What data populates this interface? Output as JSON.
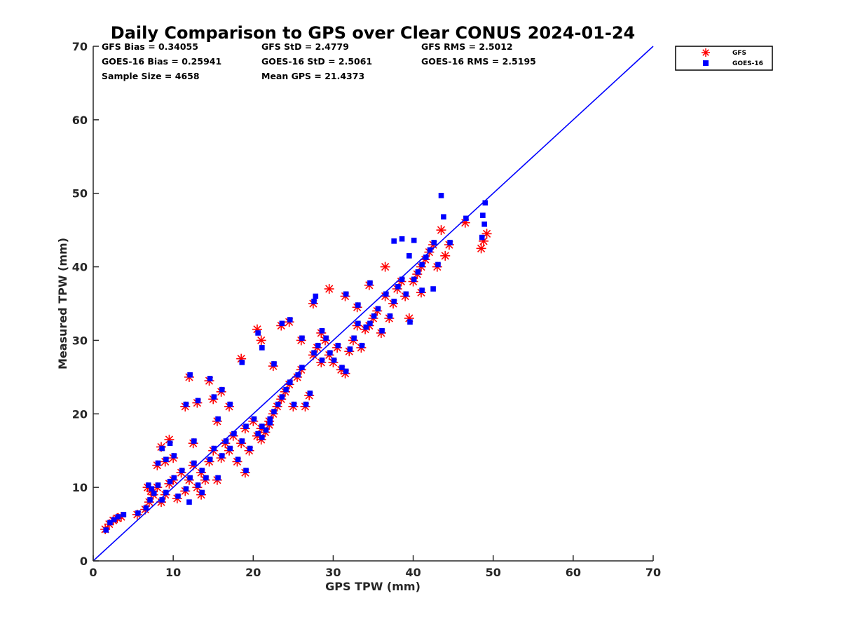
{
  "chart_data": {
    "type": "scatter",
    "title": "Daily Comparison to GPS over Clear CONUS 2024-01-24",
    "xlabel": "GPS TPW (mm)",
    "ylabel": "Measured TPW (mm)",
    "xlim": [
      0,
      70
    ],
    "ylim": [
      0,
      70
    ],
    "xticks": [
      "0",
      "10",
      "20",
      "30",
      "40",
      "50",
      "60",
      "70"
    ],
    "yticks": [
      "0",
      "10",
      "20",
      "30",
      "40",
      "50",
      "60",
      "70"
    ],
    "reference_line": {
      "name": "1:1",
      "x": [
        0,
        70
      ],
      "y": [
        0,
        70
      ],
      "color": "#0000ff"
    },
    "stats": [
      "GFS Bias = 0.34055",
      "GFS StD = 2.4779",
      "GFS RMS = 2.5012",
      "GOES-16 Bias = 0.25941",
      "GOES-16 StD = 2.5061",
      "GOES-16 RMS = 2.5195",
      "Sample Size = 4658",
      "Mean GPS = 21.4373"
    ],
    "legend": {
      "position": "top-right",
      "entries": [
        "GFS",
        "GOES-16"
      ]
    },
    "series": [
      {
        "name": "GFS",
        "marker": "asterisk",
        "color": "#ff0000",
        "points": [
          [
            1.5,
            4.3
          ],
          [
            2.0,
            5.0
          ],
          [
            2.5,
            5.5
          ],
          [
            3.0,
            5.8
          ],
          [
            3.5,
            6.0
          ],
          [
            5.5,
            6.3
          ],
          [
            6.5,
            7.0
          ],
          [
            7.0,
            8.0
          ],
          [
            7.5,
            9.0
          ],
          [
            6.8,
            10.0
          ],
          [
            7.2,
            9.5
          ],
          [
            8.0,
            10.0
          ],
          [
            8.5,
            8.0
          ],
          [
            9.0,
            9.0
          ],
          [
            9.5,
            10.5
          ],
          [
            10.0,
            11.0
          ],
          [
            10.5,
            8.5
          ],
          [
            11.0,
            12.0
          ],
          [
            11.5,
            9.5
          ],
          [
            12.0,
            11.0
          ],
          [
            12.5,
            13.0
          ],
          [
            13.0,
            10.0
          ],
          [
            13.5,
            12.0
          ],
          [
            14.0,
            11.0
          ],
          [
            14.5,
            13.5
          ],
          [
            15.0,
            15.0
          ],
          [
            15.5,
            11.0
          ],
          [
            16.0,
            14.0
          ],
          [
            16.5,
            16.0
          ],
          [
            17.0,
            15.0
          ],
          [
            17.5,
            17.0
          ],
          [
            18.0,
            13.5
          ],
          [
            18.5,
            16.0
          ],
          [
            19.0,
            18.0
          ],
          [
            19.5,
            15.0
          ],
          [
            20.0,
            19.0
          ],
          [
            20.5,
            17.0
          ],
          [
            21.0,
            18.0
          ],
          [
            21.5,
            17.5
          ],
          [
            22.0,
            19.0
          ],
          [
            22.5,
            20.0
          ],
          [
            23.0,
            21.0
          ],
          [
            23.5,
            22.0
          ],
          [
            24.0,
            23.0
          ],
          [
            24.5,
            24.0
          ],
          [
            25.0,
            21.0
          ],
          [
            25.5,
            25.0
          ],
          [
            26.0,
            26.0
          ],
          [
            26.5,
            21.0
          ],
          [
            27.0,
            22.5
          ],
          [
            27.5,
            28.0
          ],
          [
            28.0,
            29.0
          ],
          [
            28.5,
            27.0
          ],
          [
            29.0,
            30.0
          ],
          [
            29.5,
            28.0
          ],
          [
            30.0,
            27.0
          ],
          [
            30.5,
            29.0
          ],
          [
            31.0,
            26.0
          ],
          [
            31.5,
            25.5
          ],
          [
            32.0,
            28.5
          ],
          [
            32.5,
            30.0
          ],
          [
            33.0,
            32.0
          ],
          [
            33.5,
            29.0
          ],
          [
            34.0,
            31.5
          ],
          [
            34.5,
            32.0
          ],
          [
            35.0,
            33.0
          ],
          [
            35.5,
            34.0
          ],
          [
            36.0,
            31.0
          ],
          [
            36.5,
            36.0
          ],
          [
            37.0,
            33.0
          ],
          [
            37.5,
            35.0
          ],
          [
            38.0,
            37.0
          ],
          [
            38.5,
            38.0
          ],
          [
            39.0,
            36.0
          ],
          [
            39.5,
            33.0
          ],
          [
            40.0,
            38.0
          ],
          [
            40.5,
            39.0
          ],
          [
            41.0,
            40.0
          ],
          [
            41.5,
            41.0
          ],
          [
            42.0,
            42.0
          ],
          [
            42.5,
            43.0
          ],
          [
            43.0,
            40.0
          ],
          [
            43.5,
            45.0
          ],
          [
            44.0,
            41.5
          ],
          [
            44.5,
            43.0
          ],
          [
            46.5,
            46.0
          ],
          [
            48.5,
            42.5
          ],
          [
            48.8,
            43.5
          ],
          [
            49.2,
            44.5
          ],
          [
            12.0,
            25.0
          ],
          [
            13.0,
            21.5
          ],
          [
            14.5,
            24.5
          ],
          [
            15.0,
            22.0
          ],
          [
            11.5,
            21.0
          ],
          [
            16.0,
            23.0
          ],
          [
            20.5,
            31.5
          ],
          [
            21.0,
            30.0
          ],
          [
            23.5,
            32.0
          ],
          [
            24.5,
            32.5
          ],
          [
            27.5,
            35.0
          ],
          [
            29.5,
            37.0
          ],
          [
            31.5,
            36.0
          ],
          [
            28.5,
            31.0
          ],
          [
            26.0,
            30.0
          ],
          [
            8.5,
            15.5
          ],
          [
            9.5,
            16.5
          ],
          [
            9.0,
            13.5
          ],
          [
            10.0,
            14.0
          ],
          [
            19.0,
            12.0
          ],
          [
            21.0,
            16.5
          ],
          [
            22.0,
            18.5
          ],
          [
            8.0,
            13.0
          ],
          [
            12.5,
            16.0
          ],
          [
            15.5,
            19.0
          ],
          [
            17.0,
            21.0
          ],
          [
            13.5,
            9.0
          ],
          [
            18.5,
            27.5
          ],
          [
            34.5,
            37.5
          ],
          [
            36.5,
            40.0
          ],
          [
            41.0,
            36.5
          ],
          [
            33.0,
            34.5
          ],
          [
            22.5,
            26.5
          ]
        ]
      },
      {
        "name": "GOES-16",
        "marker": "square",
        "color": "#0000ff",
        "points": [
          [
            1.6,
            4.2
          ],
          [
            2.1,
            5.2
          ],
          [
            2.6,
            5.6
          ],
          [
            3.1,
            6.0
          ],
          [
            3.8,
            6.3
          ],
          [
            5.6,
            6.5
          ],
          [
            6.6,
            7.2
          ],
          [
            7.1,
            8.3
          ],
          [
            7.6,
            9.2
          ],
          [
            6.9,
            10.3
          ],
          [
            7.3,
            9.8
          ],
          [
            8.1,
            10.3
          ],
          [
            8.6,
            8.3
          ],
          [
            9.1,
            9.3
          ],
          [
            9.6,
            10.8
          ],
          [
            10.1,
            11.3
          ],
          [
            10.6,
            8.8
          ],
          [
            11.1,
            12.3
          ],
          [
            11.6,
            9.8
          ],
          [
            12.1,
            11.3
          ],
          [
            12.6,
            13.3
          ],
          [
            13.1,
            10.3
          ],
          [
            13.6,
            12.3
          ],
          [
            14.1,
            11.3
          ],
          [
            14.6,
            13.8
          ],
          [
            15.1,
            15.3
          ],
          [
            15.6,
            11.3
          ],
          [
            16.1,
            14.3
          ],
          [
            16.6,
            16.3
          ],
          [
            17.1,
            15.3
          ],
          [
            17.6,
            17.3
          ],
          [
            18.1,
            13.8
          ],
          [
            18.6,
            16.3
          ],
          [
            19.1,
            18.3
          ],
          [
            19.6,
            15.3
          ],
          [
            20.1,
            19.3
          ],
          [
            20.6,
            17.3
          ],
          [
            21.1,
            18.3
          ],
          [
            21.6,
            17.8
          ],
          [
            22.1,
            19.3
          ],
          [
            22.6,
            20.3
          ],
          [
            23.1,
            21.3
          ],
          [
            23.6,
            22.3
          ],
          [
            24.1,
            23.3
          ],
          [
            24.6,
            24.3
          ],
          [
            25.1,
            21.3
          ],
          [
            25.6,
            25.3
          ],
          [
            26.1,
            26.3
          ],
          [
            26.6,
            21.3
          ],
          [
            27.1,
            22.8
          ],
          [
            27.6,
            28.3
          ],
          [
            28.1,
            29.3
          ],
          [
            28.6,
            27.3
          ],
          [
            29.1,
            30.3
          ],
          [
            29.6,
            28.3
          ],
          [
            30.1,
            27.3
          ],
          [
            30.6,
            29.3
          ],
          [
            31.1,
            26.3
          ],
          [
            31.6,
            25.8
          ],
          [
            32.1,
            28.8
          ],
          [
            32.6,
            30.3
          ],
          [
            33.1,
            32.3
          ],
          [
            33.6,
            29.3
          ],
          [
            34.1,
            31.8
          ],
          [
            34.6,
            32.3
          ],
          [
            35.1,
            33.3
          ],
          [
            35.6,
            34.3
          ],
          [
            36.1,
            31.3
          ],
          [
            36.6,
            36.3
          ],
          [
            37.1,
            33.3
          ],
          [
            37.6,
            35.3
          ],
          [
            38.1,
            37.3
          ],
          [
            38.6,
            38.3
          ],
          [
            39.1,
            36.3
          ],
          [
            39.6,
            32.5
          ],
          [
            40.1,
            38.3
          ],
          [
            40.6,
            39.3
          ],
          [
            41.1,
            40.3
          ],
          [
            41.6,
            41.3
          ],
          [
            42.1,
            42.3
          ],
          [
            42.6,
            43.3
          ],
          [
            43.1,
            40.3
          ],
          [
            43.5,
            49.7
          ],
          [
            43.8,
            46.8
          ],
          [
            44.6,
            43.3
          ],
          [
            46.6,
            46.6
          ],
          [
            48.7,
            47.0
          ],
          [
            49.0,
            48.7
          ],
          [
            48.9,
            45.8
          ],
          [
            48.6,
            44.0
          ],
          [
            12.1,
            25.3
          ],
          [
            13.1,
            21.8
          ],
          [
            14.6,
            24.8
          ],
          [
            15.1,
            22.3
          ],
          [
            11.6,
            21.3
          ],
          [
            16.1,
            23.3
          ],
          [
            20.6,
            31.0
          ],
          [
            21.1,
            29.0
          ],
          [
            23.6,
            32.3
          ],
          [
            24.6,
            32.8
          ],
          [
            27.6,
            35.3
          ],
          [
            27.8,
            36.0
          ],
          [
            31.6,
            36.3
          ],
          [
            28.6,
            31.3
          ],
          [
            26.1,
            30.3
          ],
          [
            8.6,
            15.3
          ],
          [
            9.6,
            16.0
          ],
          [
            9.1,
            13.8
          ],
          [
            10.1,
            14.3
          ],
          [
            19.1,
            12.3
          ],
          [
            21.1,
            16.8
          ],
          [
            22.1,
            18.8
          ],
          [
            8.1,
            13.3
          ],
          [
            12.6,
            16.3
          ],
          [
            15.6,
            19.3
          ],
          [
            17.1,
            21.3
          ],
          [
            13.6,
            9.3
          ],
          [
            18.6,
            27.0
          ],
          [
            34.6,
            37.8
          ],
          [
            37.6,
            43.5
          ],
          [
            38.6,
            43.8
          ],
          [
            40.1,
            43.6
          ],
          [
            41.1,
            36.8
          ],
          [
            33.1,
            34.8
          ],
          [
            22.6,
            26.8
          ],
          [
            12.0,
            8.0
          ],
          [
            39.5,
            41.5
          ],
          [
            42.5,
            37.0
          ]
        ]
      }
    ]
  }
}
